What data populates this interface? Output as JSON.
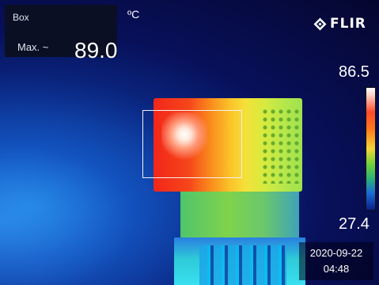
{
  "measurement": {
    "mode_label": "Box",
    "stat_label": "Max. ~",
    "value": "89.0"
  },
  "unit": "ºC",
  "brand": {
    "logo_text": "FLIR",
    "icon": "flir-diamond-icon"
  },
  "scale": {
    "max": "86.5",
    "min": "27.4",
    "palette": [
      "#ffffff",
      "#ff4b2b",
      "#ff7a1c",
      "#f2d43a",
      "#6bd23a",
      "#1b6dd8",
      "#0a1f8a"
    ]
  },
  "timestamp": {
    "date": "2020-09-22",
    "time": "04:48"
  }
}
